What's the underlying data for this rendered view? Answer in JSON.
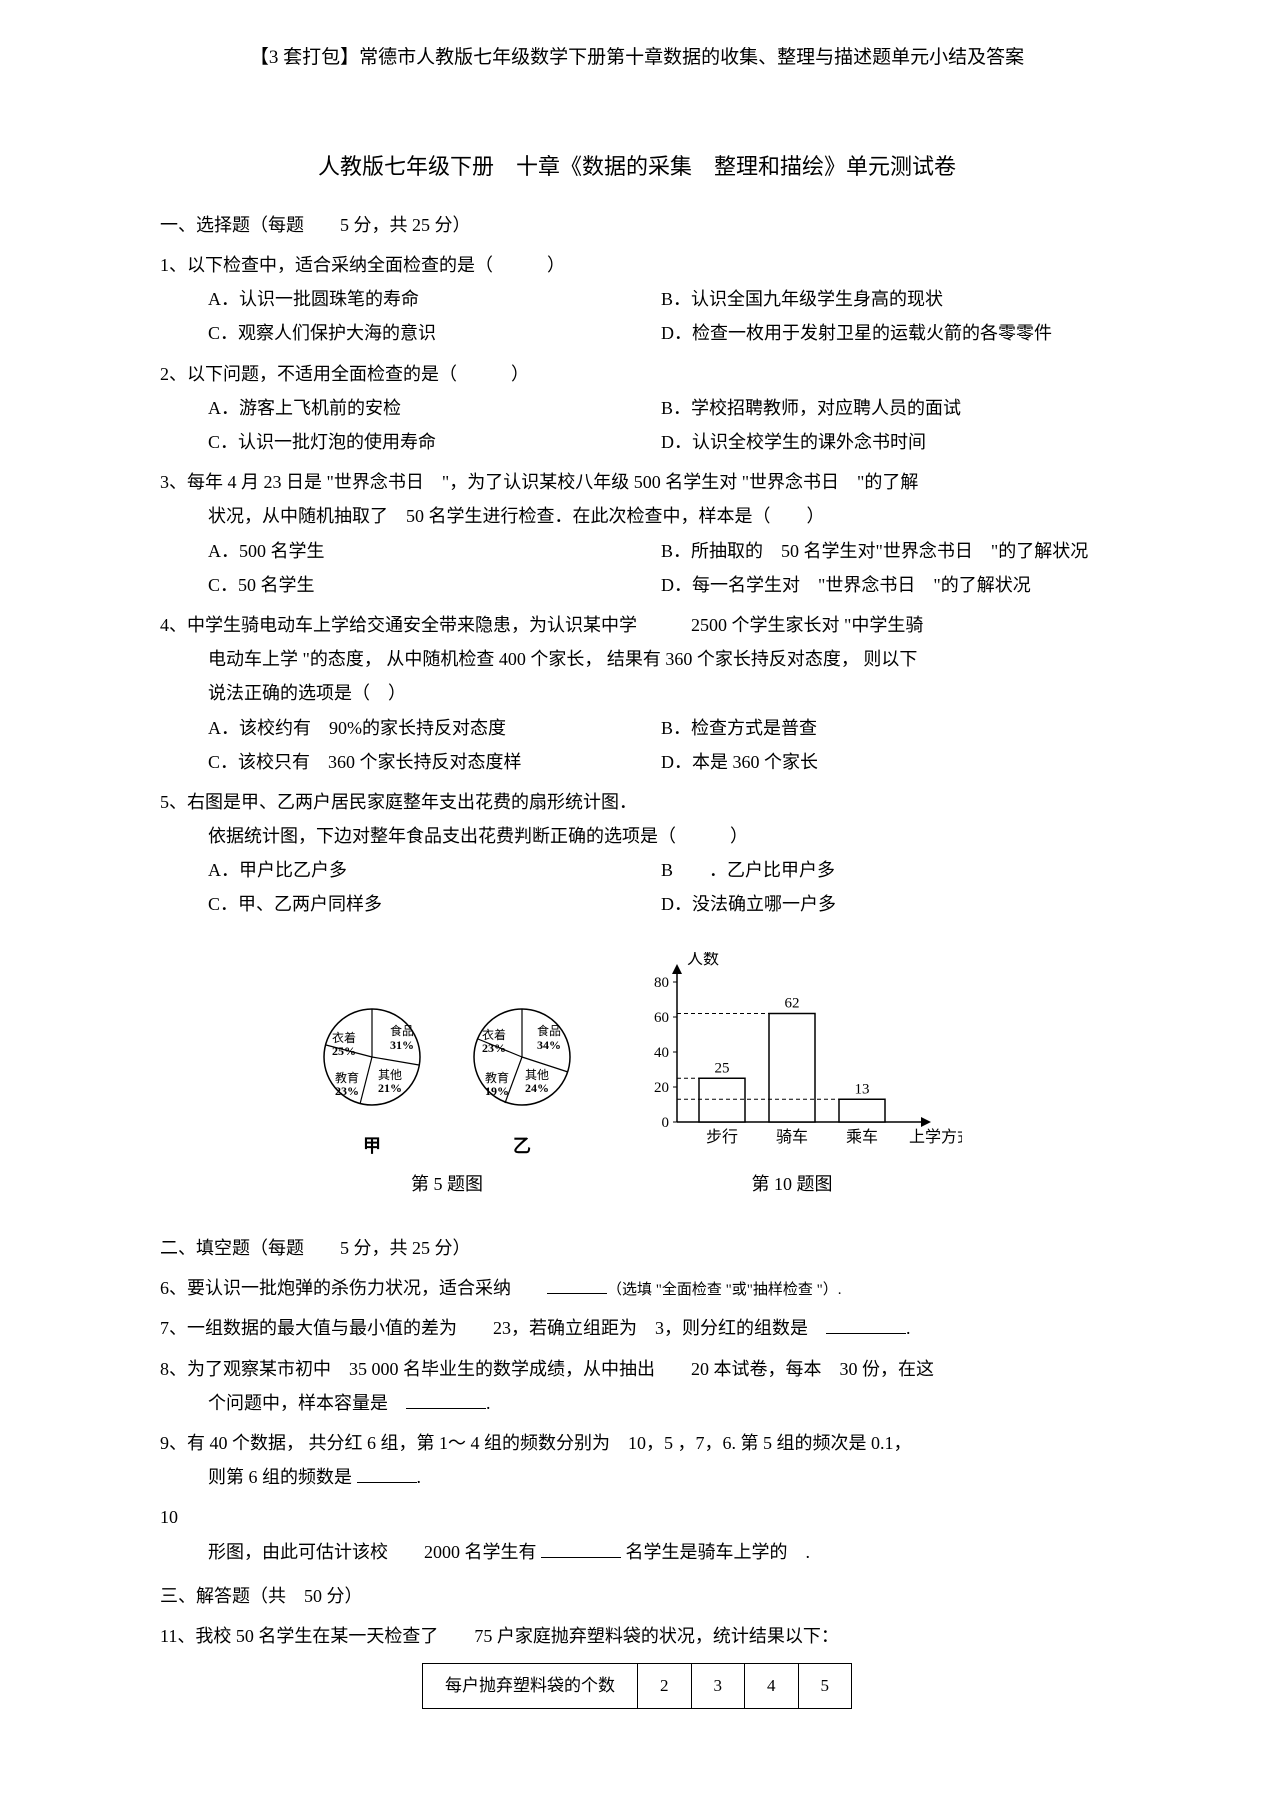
{
  "header": "【3 套打包】常德市人教版七年级数学下册第十章数据的收集、整理与描述题单元小结及答案",
  "title": "人教版七年级下册　十章《数据的采集　整理和描绘》单元测试卷",
  "section1": "一、选择题（每题　　5 分，共 25 分）",
  "q1": {
    "stem": "1、以下检查中，适合采纳全面检查的是（　　　）",
    "a": "A．认识一批圆珠笔的寿命",
    "b": "B．认识全国九年级学生身高的现状",
    "c": "C．观察人们保护大海的意识",
    "d": "D．检查一枚用于发射卫星的运载火箭的各零零件"
  },
  "q2": {
    "stem": "2、以下问题，不适用全面检查的是（　　　）",
    "a": "A．游客上飞机前的安检",
    "b": "B．学校招聘教师，对应聘人员的面试",
    "c": "C．认识一批灯泡的使用寿命",
    "d": "D．认识全校学生的课外念书时间"
  },
  "q3": {
    "stem1": "3、每年 4 月 23 日是 \"世界念书日　\"，为了认识某校八年级 500 名学生对 \"世界念书日　\"的了解",
    "stem2": "状况，从中随机抽取了　50 名学生进行检查．在此次检查中，样本是（　　）",
    "a": "A．500 名学生",
    "b": "B．所抽取的　50 名学生对\"世界念书日　\"的了解状况",
    "c": "C．50 名学生",
    "d": "D．每一名学生对　\"世界念书日　\"的了解状况"
  },
  "q4": {
    "stem1": "4、中学生骑电动车上学给交通安全带来隐患，为认识某中学　　　2500 个学生家长对 \"中学生骑",
    "stem2": "电动车上学 \"的态度， 从中随机检查 400 个家长， 结果有 360 个家长持反对态度， 则以下",
    "stem3": "说法正确的选项是（　）",
    "a": "A．该校约有　90%的家长持反对态度",
    "b": "B．检查方式是普查",
    "c": "C．该校只有　360 个家长持反对态度样",
    "d": "D．本是 360 个家长"
  },
  "q5": {
    "stem1": "5、右图是甲、乙两户居民家庭整年支出花费的扇形统计图．",
    "stem2": "依据统计图，下边对整年食品支出花费判断正确的选项是（　　　）",
    "a": "A．甲户比乙户多",
    "b": "B　　．乙户比甲户多",
    "c": "C．甲、乙两户同样多",
    "d": "D．没法确立哪一户多"
  },
  "pie_jia": {
    "label": "甲",
    "slices": [
      {
        "label": "衣着",
        "pct": "25%"
      },
      {
        "label": "食品",
        "pct": "31%"
      },
      {
        "label": "教育",
        "pct": "23%"
      },
      {
        "label": "其他",
        "pct": "21%"
      }
    ]
  },
  "pie_yi": {
    "label": "乙",
    "slices": [
      {
        "label": "衣着",
        "pct": "23%"
      },
      {
        "label": "食品",
        "pct": "34%"
      },
      {
        "label": "教育",
        "pct": "19%"
      },
      {
        "label": "其他",
        "pct": "24%"
      }
    ]
  },
  "fig5_caption": "第 5 题图",
  "bar_chart": {
    "ylabel": "人数",
    "ymax": 80,
    "yticks": [
      0,
      20,
      40,
      60,
      80
    ],
    "categories": [
      "步行",
      "骑车",
      "乘车"
    ],
    "values": [
      25,
      62,
      13
    ],
    "xlabel": "上学方式",
    "bar_color": "#ffffff",
    "border_color": "#000000",
    "caption": "第 10 题图"
  },
  "section2": "二、填空题（每题　　5 分，共 25 分）",
  "q6": {
    "pre": "6、要认识一批炮弹的杀伤力状况，适合采纳　　",
    "post": "（选填 \"全面检查 \"或\"抽样检查 \"）."
  },
  "q7": "7、一组数据的最大值与最小值的差为　　23，若确立组距为　3，则分红的组数是　",
  "q8a": "8、为了观察某市初中　35 000 名毕业生的数学成绩，从中抽出　　20 本试卷，每本　30 份，在这",
  "q8b": "个问题中，样本容量是　",
  "q9a": "9、有 40 个数据， 共分红 6 组，第 1～ 4 组的频数分别为　10，5 ，7，6. 第 5 组的频次是 0.1，",
  "q9b": "则第 6 组的频数是 ",
  "q10a": "10",
  "q10b": "形图，由此可估计该校　　2000 名学生有 ",
  "q10c": " 名学生是骑车上学的　.",
  "section3": "三、解答题（共　50 分）",
  "q11": "11、我校 50 名学生在某一天检查了　　75 户家庭抛弃塑料袋的状况，统计结果以下：",
  "table": {
    "header": "每户抛弃塑料袋的个数",
    "cols": [
      "2",
      "3",
      "4",
      "5"
    ]
  }
}
